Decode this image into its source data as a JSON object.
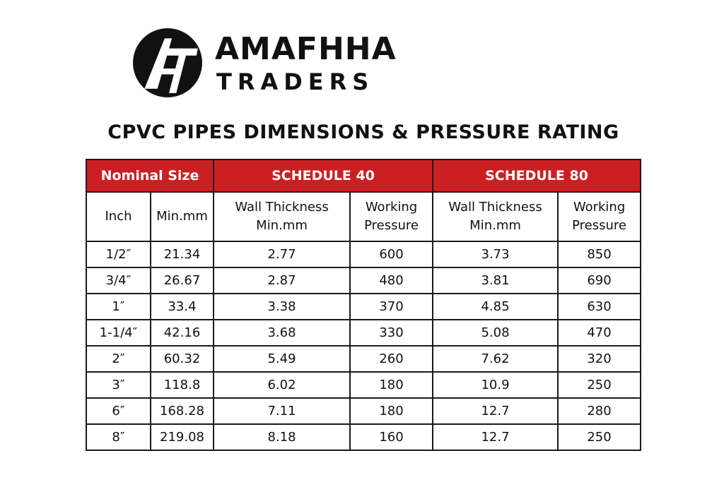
{
  "brand": {
    "name_line1": "AMAFHHA",
    "name_line2": "TRADERS",
    "logo_letters": "AT",
    "logo_color": "#111111"
  },
  "title": "CPVC PIPES DIMENSIONS & PRESSURE RATING",
  "colors": {
    "header_red": "#cc1f24",
    "header_text": "#ffffff",
    "border": "#1a1a1a"
  },
  "table": {
    "group_headers": [
      "Nominal Size",
      "SCHEDULE 40",
      "SCHEDULE 80"
    ],
    "sub_headers": [
      {
        "line1": "Inch",
        "line2": ""
      },
      {
        "line1": "Min.mm",
        "line2": ""
      },
      {
        "line1": "Wall Thickness",
        "line2": "Min.mm"
      },
      {
        "line1": "Working",
        "line2": "Pressure"
      },
      {
        "line1": "Wall Thickness",
        "line2": "Min.mm"
      },
      {
        "line1": "Working",
        "line2": "Pressure"
      }
    ],
    "rows": [
      [
        "1/2″",
        "21.34",
        "2.77",
        "600",
        "3.73",
        "850"
      ],
      [
        "3/4″",
        "26.67",
        "2.87",
        "480",
        "3.81",
        "690"
      ],
      [
        "1″",
        "33.4",
        "3.38",
        "370",
        "4.85",
        "630"
      ],
      [
        "1-1/4″",
        "42.16",
        "3.68",
        "330",
        "5.08",
        "470"
      ],
      [
        "2″",
        "60.32",
        "5.49",
        "260",
        "7.62",
        "320"
      ],
      [
        "3″",
        "118.8",
        "6.02",
        "180",
        "10.9",
        "250"
      ],
      [
        "6″",
        "168.28",
        "7.11",
        "180",
        "12.7",
        "280"
      ],
      [
        "8″",
        "219.08",
        "8.18",
        "160",
        "12.7",
        "250"
      ]
    ]
  }
}
